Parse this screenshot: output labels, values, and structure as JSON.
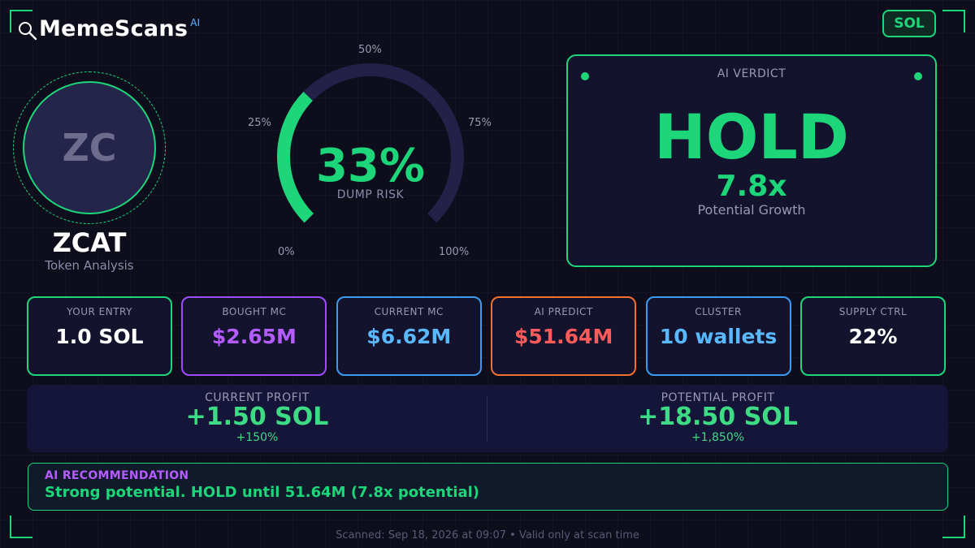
{
  "header": {
    "brand_name": "MemeScans",
    "brand_suffix": "AI",
    "chain_badge": "SOL"
  },
  "token": {
    "initials": "ZC",
    "symbol": "ZCAT",
    "subtitle": "Token Analysis"
  },
  "gauge": {
    "value_percent": 33,
    "value_label": "33%",
    "caption": "DUMP RISK",
    "ticks": {
      "t0": "0%",
      "t25": "25%",
      "t50": "50%",
      "t75": "75%",
      "t100": "100%"
    },
    "fill_color": "#1ed67a",
    "track_color": "#232148"
  },
  "verdict": {
    "label": "AI VERDICT",
    "word": "HOLD",
    "multiplier": "7.8x",
    "sub": "Potential Growth"
  },
  "stats": [
    {
      "label": "YOUR ENTRY",
      "value": "1.0 SOL",
      "value_color": "#ffffff",
      "border_color": "#1ed67a"
    },
    {
      "label": "BOUGHT MC",
      "value": "$2.65M",
      "value_color": "#b45cff",
      "border_color": "#9b4dff"
    },
    {
      "label": "CURRENT MC",
      "value": "$6.62M",
      "value_color": "#5ab8ff",
      "border_color": "#3a9bf0"
    },
    {
      "label": "AI PREDICT",
      "value": "$51.64M",
      "value_color": "#ff5b5b",
      "border_color": "#f07030"
    },
    {
      "label": "CLUSTER",
      "value": "10 wallets",
      "value_color": "#5ab8ff",
      "border_color": "#3a9bf0"
    },
    {
      "label": "SUPPLY CTRL",
      "value": "22%",
      "value_color": "#ffffff",
      "border_color": "#1ed67a"
    }
  ],
  "profit": {
    "current": {
      "label": "CURRENT PROFIT",
      "value": "+1.50 SOL",
      "percent": "+150%"
    },
    "potential": {
      "label": "POTENTIAL PROFIT",
      "value": "+18.50 SOL",
      "percent": "+1,850%"
    }
  },
  "recommendation": {
    "label": "AI RECOMMENDATION",
    "text": "Strong potential. HOLD until 51.64M (7.8x potential)"
  },
  "footer": "Scanned: Sep 18, 2026 at 09:07  •  Valid only at scan time",
  "icons": {
    "brand": "magnifier-icon"
  }
}
